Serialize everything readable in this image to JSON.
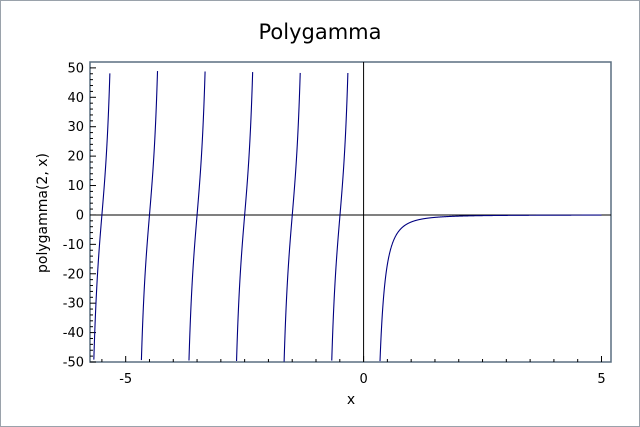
{
  "chart_data": {
    "type": "line",
    "title": "Polygamma",
    "xlabel": "x",
    "ylabel": "polygamma(2, x)",
    "xlim": [
      -5.75,
      5.2
    ],
    "ylim": [
      -50,
      52
    ],
    "x_ticks": [
      {
        "value": -5,
        "label": "-5"
      },
      {
        "value": 0,
        "label": "0"
      },
      {
        "value": 5,
        "label": "5"
      }
    ],
    "y_ticks": [
      {
        "value": 50,
        "label": "50"
      },
      {
        "value": 40,
        "label": "40"
      },
      {
        "value": 30,
        "label": "30"
      },
      {
        "value": 20,
        "label": "20"
      },
      {
        "value": 10,
        "label": "10"
      },
      {
        "value": 0,
        "label": "0"
      },
      {
        "value": -10,
        "label": "-10"
      },
      {
        "value": -20,
        "label": "-20"
      },
      {
        "value": -30,
        "label": "-30"
      },
      {
        "value": -40,
        "label": "-40"
      },
      {
        "value": -50,
        "label": "-50"
      }
    ],
    "series": [
      {
        "function": "polygamma(2, x)",
        "x_range": [
          -5.75,
          5
        ],
        "color": "#000080"
      }
    ],
    "grid": false,
    "zero_axes": true,
    "axis_color": "#000000",
    "frame_color": "#5a6e80"
  }
}
